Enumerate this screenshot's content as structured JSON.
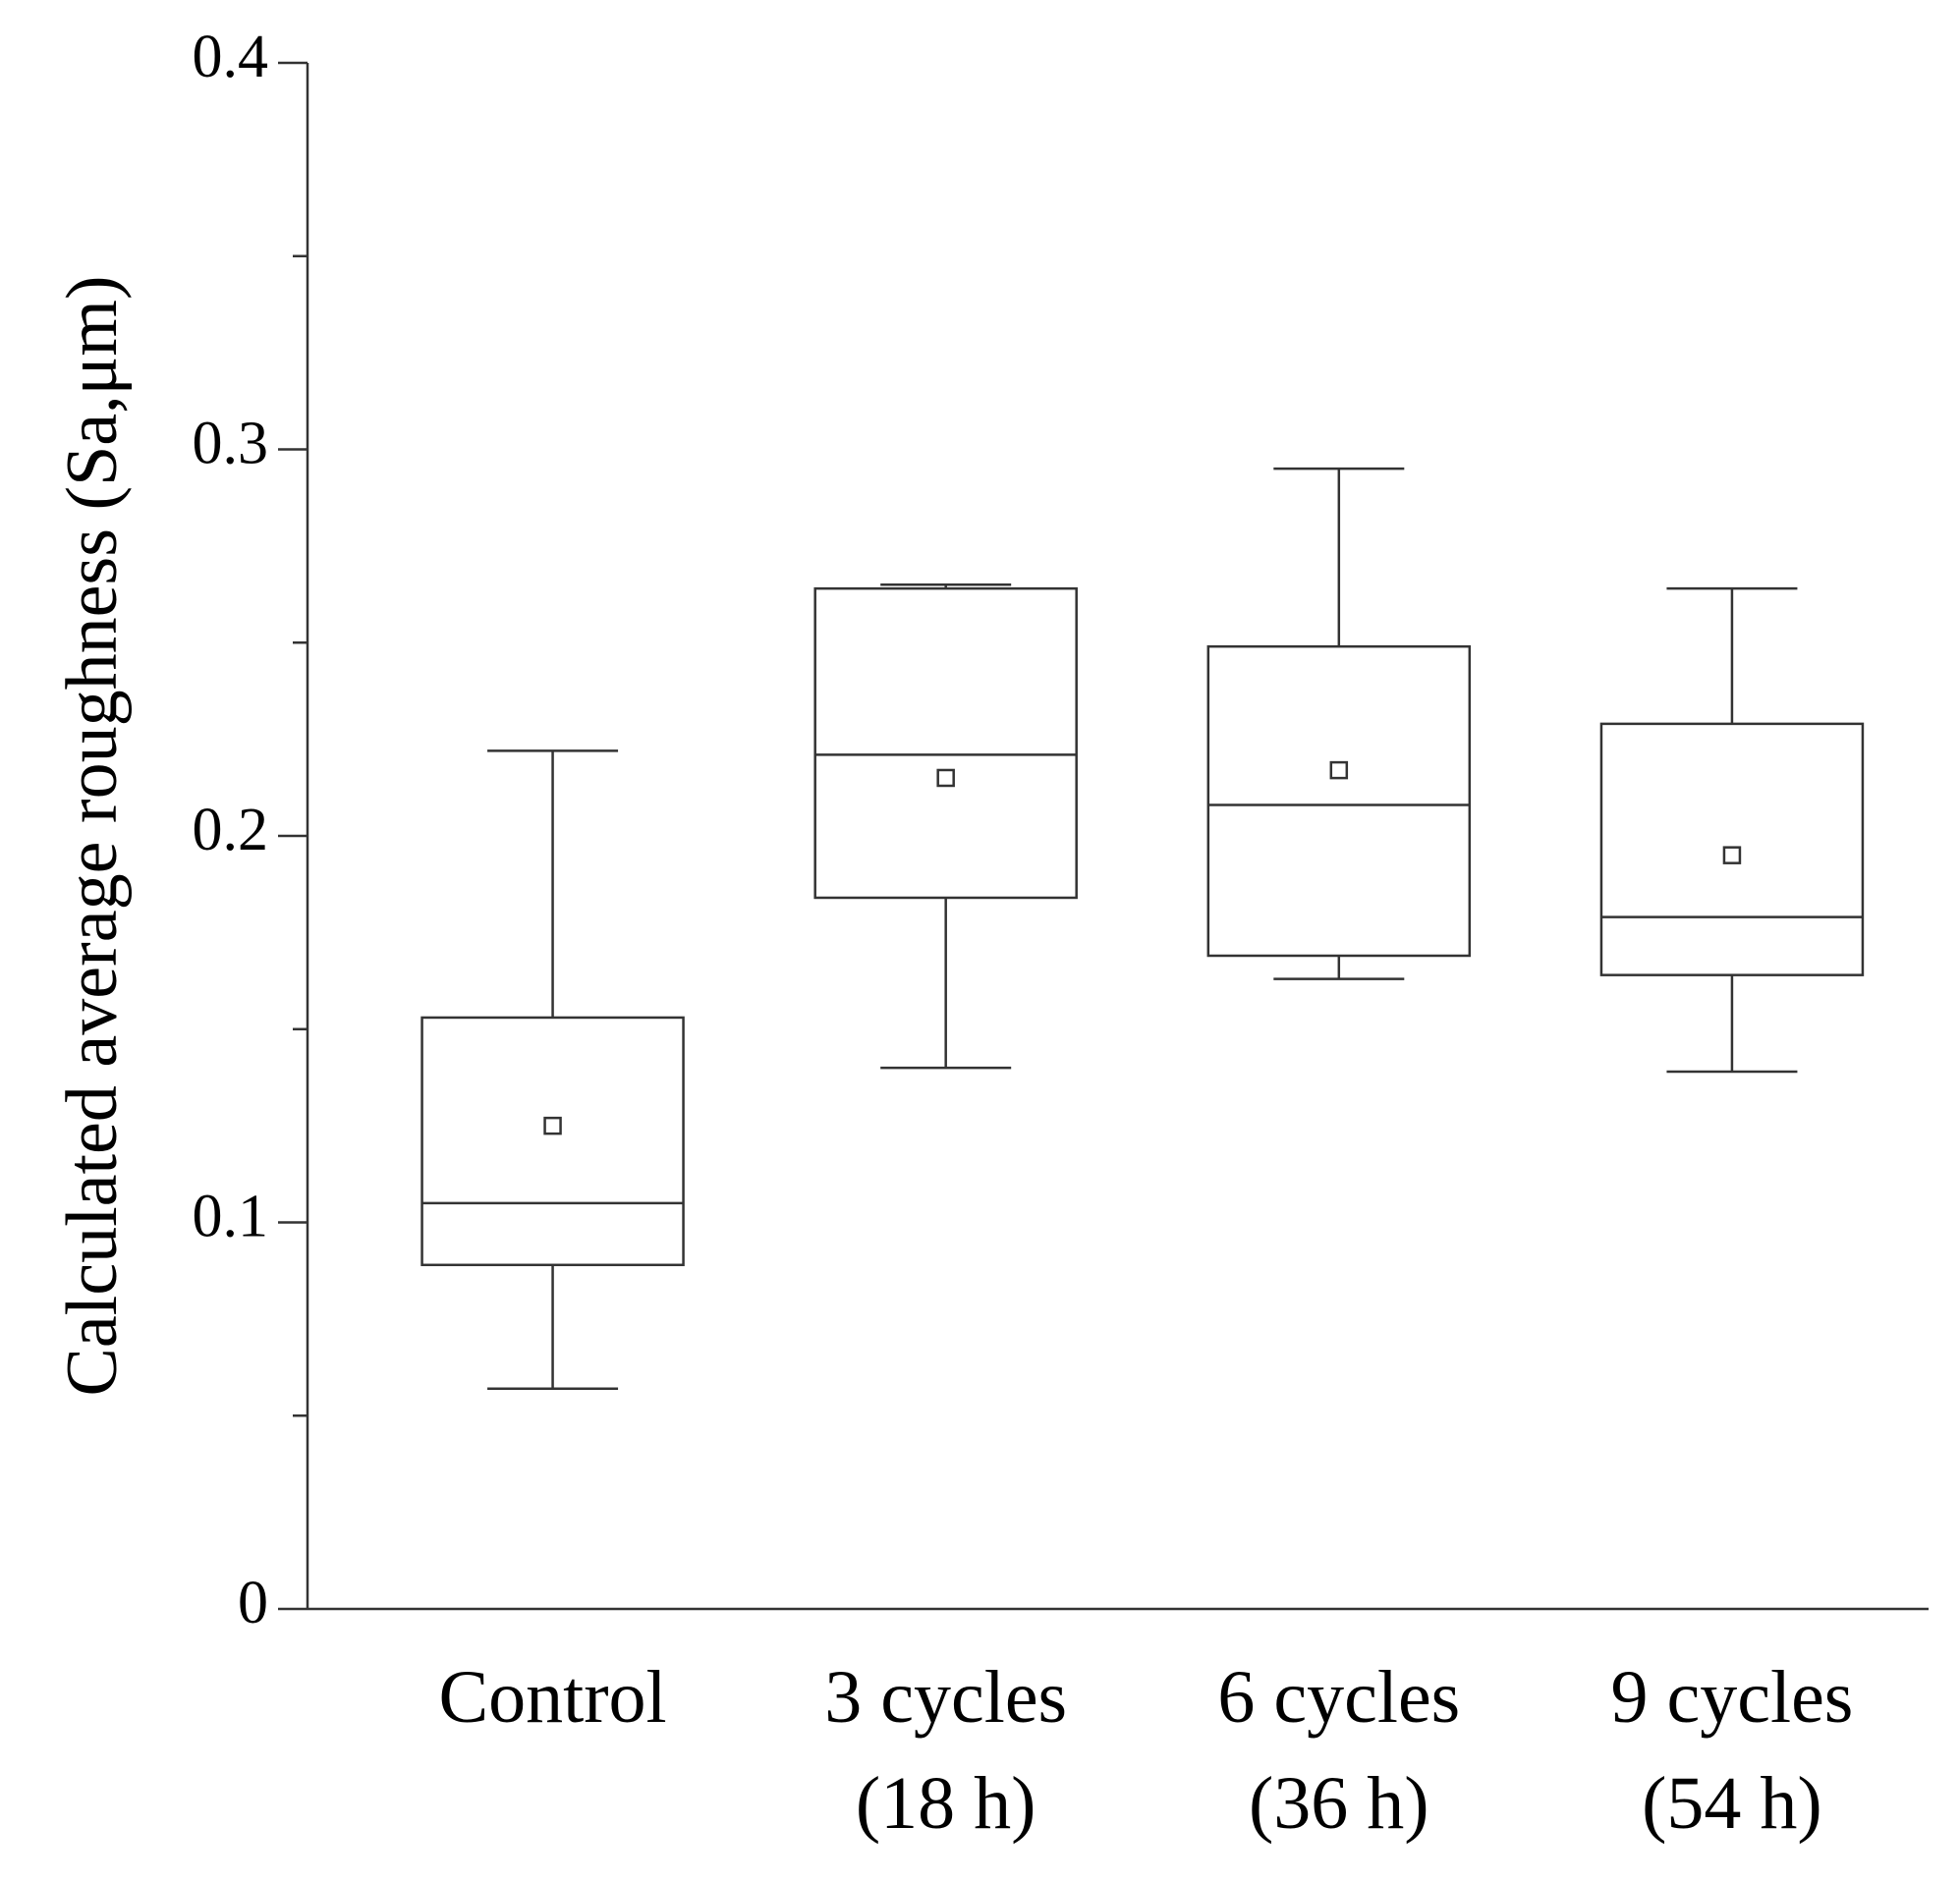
{
  "chart_data": {
    "type": "box",
    "y_label": "Calculated average roughness (Sa,μm)",
    "categories": [
      [
        "Control"
      ],
      [
        "3 cycles",
        "(18 h)"
      ],
      [
        "6 cycles",
        "(36 h)"
      ],
      [
        "9 cycles",
        "(54 h)"
      ]
    ],
    "whisker_high": [
      0.222,
      0.265,
      0.295,
      0.264
    ],
    "q3": [
      0.153,
      0.264,
      0.249,
      0.229
    ],
    "median": [
      0.105,
      0.221,
      0.208,
      0.179
    ],
    "q1": [
      0.089,
      0.184,
      0.169,
      0.164
    ],
    "whisker_low": [
      0.057,
      0.14,
      0.163,
      0.139
    ],
    "mean": [
      0.125,
      0.215,
      0.217,
      0.195
    ],
    "color": "#333333",
    "ylim": [
      0,
      0.4
    ],
    "yticks": [
      0,
      0.1,
      0.2,
      0.3,
      0.4
    ],
    "minor_yticks": [
      0.05,
      0.15,
      0.25,
      0.35
    ]
  }
}
